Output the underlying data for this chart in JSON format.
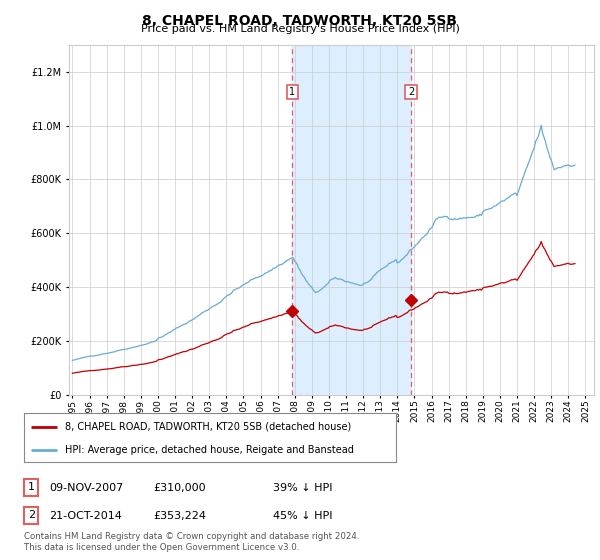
{
  "title": "8, CHAPEL ROAD, TADWORTH, KT20 5SB",
  "subtitle": "Price paid vs. HM Land Registry's House Price Index (HPI)",
  "hpi_label": "HPI: Average price, detached house, Reigate and Banstead",
  "property_label": "8, CHAPEL ROAD, TADWORTH, KT20 5SB (detached house)",
  "footnote": "Contains HM Land Registry data © Crown copyright and database right 2024.\nThis data is licensed under the Open Government Licence v3.0.",
  "transaction1": {
    "date": "09-NOV-2007",
    "price": 310000,
    "pct": "39% ↓ HPI",
    "label": "1"
  },
  "transaction2": {
    "date": "21-OCT-2014",
    "price": 353224,
    "pct": "45% ↓ HPI",
    "label": "2"
  },
  "vline1_x": 2007.86,
  "vline2_x": 2014.8,
  "ylim": [
    0,
    1300000
  ],
  "xlim_start": 1994.8,
  "xlim_end": 2025.5,
  "hpi_color": "#6aaad4",
  "property_color": "#c00000",
  "vline_color": "#e06060",
  "shade_color": "#ddeeff",
  "background_color": "#ffffff",
  "grid_color": "#cccccc"
}
